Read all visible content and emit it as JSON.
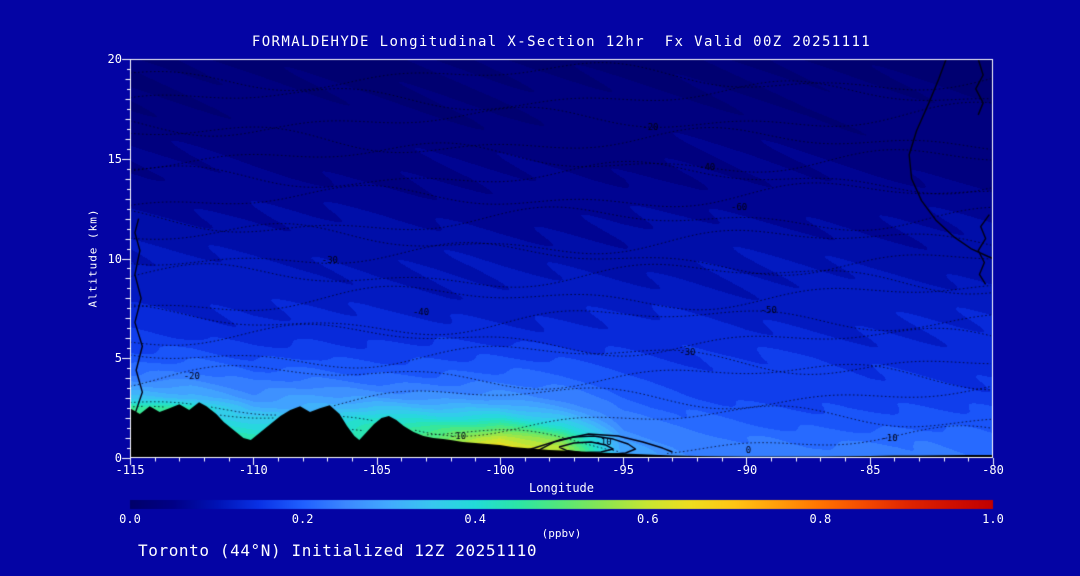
{
  "title": "FORMALDEHYDE Longitudinal X-Section 12hr  Fx Valid 00Z 20251111",
  "footer": "Toronto (44°N) Initialized 12Z 20251110",
  "colors": {
    "background": "#0404a4",
    "axis": "#ffffff",
    "text": "#ffffff",
    "terrain": "#000000",
    "contour_line": "#000014"
  },
  "axes": {
    "x": {
      "label": "Longitude",
      "min": -115,
      "max": -80,
      "ticks": [
        -115,
        -110,
        -105,
        -100,
        -95,
        -90,
        -85,
        -80
      ],
      "minor_step": 1
    },
    "y": {
      "label": "Altitude (km)",
      "min": 0,
      "max": 20,
      "ticks": [
        0,
        5,
        10,
        15,
        20
      ],
      "minor_step": 0.5
    }
  },
  "colorbar": {
    "label": "(ppbv)",
    "min": 0,
    "max": 1,
    "tick_labels": [
      "0.0",
      "0.2",
      "0.4",
      "0.6",
      "0.8",
      "1.0"
    ],
    "tick_values": [
      0,
      0.2,
      0.4,
      0.6,
      0.8,
      1.0
    ],
    "stops": [
      [
        0.0,
        "#00006a"
      ],
      [
        0.05,
        "#000086"
      ],
      [
        0.1,
        "#0012b4"
      ],
      [
        0.15,
        "#0a32e6"
      ],
      [
        0.2,
        "#2060ff"
      ],
      [
        0.25,
        "#3c88ff"
      ],
      [
        0.3,
        "#42aaff"
      ],
      [
        0.35,
        "#38c8f0"
      ],
      [
        0.4,
        "#22dcd8"
      ],
      [
        0.45,
        "#2ce6a6"
      ],
      [
        0.5,
        "#55e878"
      ],
      [
        0.55,
        "#8ce650"
      ],
      [
        0.6,
        "#c8e632"
      ],
      [
        0.65,
        "#f0de1e"
      ],
      [
        0.7,
        "#ffc614"
      ],
      [
        0.75,
        "#ff9e0a"
      ],
      [
        0.8,
        "#ff7300"
      ],
      [
        0.85,
        "#f54b00"
      ],
      [
        0.9,
        "#e02600"
      ],
      [
        0.95,
        "#d01000"
      ],
      [
        1.0,
        "#c00000"
      ]
    ]
  },
  "chart_data": {
    "type": "heatmap",
    "title": "FORMALDEHYDE Longitudinal X-Section 12hr  Fx Valid 00Z 20251111",
    "units": "ppbv",
    "x_name": "Longitude",
    "y_name": "Altitude (km)",
    "x_range": [
      -115,
      -80
    ],
    "y_range": [
      0,
      20
    ],
    "band_step": 0.025,
    "lons": [
      -115,
      -112.5,
      -110,
      -107.5,
      -105,
      -102.5,
      -100,
      -97.5,
      -95,
      -92.5,
      -90,
      -87.5,
      -85,
      -82.5,
      -80
    ],
    "alts": [
      0,
      0.5,
      1,
      1.5,
      2,
      2.5,
      3,
      4,
      5,
      6,
      8,
      10,
      12,
      14,
      17,
      20
    ],
    "values": [
      [
        0.5,
        0.5,
        0.5,
        0.48,
        0.52,
        0.58,
        0.66,
        0.6,
        0.3,
        0.26,
        0.24,
        0.23,
        0.24,
        0.24,
        0.22
      ],
      [
        0.48,
        0.48,
        0.47,
        0.45,
        0.5,
        0.56,
        0.65,
        0.58,
        0.29,
        0.25,
        0.23,
        0.22,
        0.24,
        0.23,
        0.21
      ],
      [
        0.45,
        0.45,
        0.44,
        0.42,
        0.46,
        0.5,
        0.6,
        0.52,
        0.27,
        0.23,
        0.22,
        0.21,
        0.22,
        0.22,
        0.2
      ],
      [
        0.42,
        0.42,
        0.4,
        0.38,
        0.44,
        0.46,
        0.5,
        0.42,
        0.25,
        0.22,
        0.2,
        0.2,
        0.2,
        0.2,
        0.19
      ],
      [
        0.5,
        0.4,
        0.36,
        0.35,
        0.4,
        0.38,
        0.4,
        0.34,
        0.23,
        0.2,
        0.19,
        0.19,
        0.19,
        0.18,
        0.18
      ],
      [
        0.48,
        0.44,
        0.3,
        0.3,
        0.33,
        0.32,
        0.33,
        0.28,
        0.21,
        0.19,
        0.18,
        0.18,
        0.17,
        0.17,
        0.17
      ],
      [
        0.34,
        0.32,
        0.26,
        0.28,
        0.27,
        0.27,
        0.27,
        0.24,
        0.2,
        0.18,
        0.17,
        0.17,
        0.16,
        0.16,
        0.16
      ],
      [
        0.24,
        0.24,
        0.21,
        0.22,
        0.21,
        0.21,
        0.21,
        0.2,
        0.18,
        0.17,
        0.16,
        0.16,
        0.15,
        0.15,
        0.15
      ],
      [
        0.18,
        0.19,
        0.17,
        0.18,
        0.17,
        0.17,
        0.17,
        0.17,
        0.16,
        0.15,
        0.15,
        0.15,
        0.14,
        0.14,
        0.14
      ],
      [
        0.15,
        0.15,
        0.14,
        0.15,
        0.14,
        0.14,
        0.14,
        0.14,
        0.14,
        0.14,
        0.13,
        0.13,
        0.13,
        0.13,
        0.13
      ],
      [
        0.12,
        0.12,
        0.115,
        0.115,
        0.11,
        0.11,
        0.11,
        0.11,
        0.11,
        0.11,
        0.11,
        0.11,
        0.11,
        0.11,
        0.11
      ],
      [
        0.1,
        0.1,
        0.1,
        0.1,
        0.095,
        0.095,
        0.09,
        0.09,
        0.09,
        0.095,
        0.095,
        0.095,
        0.09,
        0.09,
        0.09
      ],
      [
        0.08,
        0.08,
        0.08,
        0.075,
        0.075,
        0.07,
        0.07,
        0.07,
        0.07,
        0.075,
        0.075,
        0.075,
        0.07,
        0.07,
        0.07
      ],
      [
        0.055,
        0.055,
        0.05,
        0.05,
        0.05,
        0.05,
        0.05,
        0.05,
        0.05,
        0.055,
        0.055,
        0.05,
        0.05,
        0.05,
        0.05
      ],
      [
        0.035,
        0.035,
        0.035,
        0.03,
        0.03,
        0.03,
        0.03,
        0.035,
        0.035,
        0.035,
        0.035,
        0.035,
        0.03,
        0.03,
        0.03
      ],
      [
        0.02,
        0.02,
        0.02,
        0.02,
        0.02,
        0.02,
        0.02,
        0.02,
        0.02,
        0.02,
        0.02,
        0.02,
        0.02,
        0.02,
        0.02
      ]
    ],
    "terrain_profile": [
      [
        -115,
        2.5
      ],
      [
        -114.6,
        2.2
      ],
      [
        -114.2,
        2.6
      ],
      [
        -113.8,
        2.3
      ],
      [
        -113.4,
        2.5
      ],
      [
        -113,
        2.7
      ],
      [
        -112.6,
        2.4
      ],
      [
        -112.2,
        2.8
      ],
      [
        -111.9,
        2.6
      ],
      [
        -111.5,
        2.2
      ],
      [
        -111.2,
        1.8
      ],
      [
        -110.8,
        1.4
      ],
      [
        -110.4,
        1.0
      ],
      [
        -110.1,
        0.9
      ],
      [
        -109.7,
        1.3
      ],
      [
        -109.3,
        1.7
      ],
      [
        -108.9,
        2.1
      ],
      [
        -108.5,
        2.4
      ],
      [
        -108.1,
        2.6
      ],
      [
        -107.7,
        2.3
      ],
      [
        -107.3,
        2.5
      ],
      [
        -106.9,
        2.65
      ],
      [
        -106.5,
        2.2
      ],
      [
        -106.2,
        1.6
      ],
      [
        -105.9,
        1.1
      ],
      [
        -105.7,
        0.9
      ],
      [
        -105.4,
        1.3
      ],
      [
        -105.1,
        1.7
      ],
      [
        -104.8,
        2.0
      ],
      [
        -104.5,
        2.1
      ],
      [
        -104.2,
        1.9
      ],
      [
        -103.9,
        1.6
      ],
      [
        -103.5,
        1.3
      ],
      [
        -103.1,
        1.1
      ],
      [
        -102.7,
        1.0
      ],
      [
        -102.3,
        0.95
      ],
      [
        -102,
        0.9
      ],
      [
        -101.5,
        0.8
      ],
      [
        -101,
        0.75
      ],
      [
        -100.5,
        0.7
      ],
      [
        -100,
        0.65
      ],
      [
        -99.5,
        0.55
      ],
      [
        -99,
        0.5
      ],
      [
        -98.5,
        0.45
      ],
      [
        -98,
        0.4
      ],
      [
        -97.5,
        0.38
      ],
      [
        -97,
        0.35
      ],
      [
        -96.5,
        0.3
      ],
      [
        -96,
        0.28
      ],
      [
        -95.5,
        0.25
      ],
      [
        -95,
        0.22
      ],
      [
        -94.5,
        0.2
      ],
      [
        -94,
        0.18
      ],
      [
        -93.5,
        0.15
      ],
      [
        -93,
        0.12
      ],
      [
        -92,
        0.1
      ],
      [
        -91,
        0.09
      ],
      [
        -90,
        0.08
      ],
      [
        -89,
        0.07
      ],
      [
        -88,
        0.07
      ],
      [
        -87,
        0.08
      ],
      [
        -86,
        0.09
      ],
      [
        -85,
        0.1
      ],
      [
        -84,
        0.12
      ],
      [
        -83,
        0.13
      ],
      [
        -82,
        0.14
      ],
      [
        -81,
        0.15
      ],
      [
        -80,
        0.15
      ]
    ],
    "dotted_overlay": {
      "count": 19,
      "spacing_km": 1
    },
    "contour_labels": [
      {
        "text": "-20",
        "lon": -93.9,
        "alt": 16.6
      },
      {
        "text": "-40",
        "lon": -91.6,
        "alt": 14.6
      },
      {
        "text": "-60",
        "lon": -90.3,
        "alt": 12.6
      },
      {
        "text": "-30",
        "lon": -106.9,
        "alt": 9.9
      },
      {
        "text": "-20",
        "lon": -112.5,
        "alt": 4.1
      },
      {
        "text": "-40",
        "lon": -103.2,
        "alt": 7.3
      },
      {
        "text": "-30",
        "lon": -92.4,
        "alt": 5.3
      },
      {
        "text": "-50",
        "lon": -89.1,
        "alt": 7.4
      },
      {
        "text": "-10",
        "lon": -101.7,
        "alt": 1.1
      },
      {
        "text": "-10",
        "lon": -95.8,
        "alt": 0.8
      },
      {
        "text": "0",
        "lon": -89.7,
        "alt": 0.4
      },
      {
        "text": "-10",
        "lon": -84.2,
        "alt": 1.0
      }
    ],
    "solid_contours": [
      [
        [
          -114.8,
          0.3
        ],
        [
          -114.55,
          1.2
        ],
        [
          -114.8,
          2.2
        ],
        [
          -114.5,
          3.3
        ],
        [
          -114.75,
          4.4
        ],
        [
          -114.5,
          5.6
        ],
        [
          -114.8,
          6.8
        ],
        [
          -114.55,
          8.0
        ],
        [
          -114.8,
          9.2
        ],
        [
          -114.6,
          10.4
        ],
        [
          -114.8,
          11.3
        ],
        [
          -114.65,
          12.0
        ]
      ],
      [
        [
          -81.9,
          20
        ],
        [
          -82.2,
          19
        ],
        [
          -82.6,
          17.8
        ],
        [
          -83.1,
          16.4
        ],
        [
          -83.4,
          15.2
        ],
        [
          -83.3,
          14.0
        ],
        [
          -82.9,
          12.9
        ],
        [
          -82.3,
          11.9
        ],
        [
          -81.6,
          11.1
        ],
        [
          -80.9,
          10.5
        ],
        [
          -80.2,
          10.1
        ],
        [
          -80.0,
          10.0
        ]
      ],
      [
        [
          -80.6,
          20
        ],
        [
          -80.4,
          19.2
        ],
        [
          -80.7,
          18.5
        ],
        [
          -80.4,
          17.8
        ],
        [
          -80.6,
          17.2
        ]
      ],
      [
        [
          -80.15,
          12.2
        ],
        [
          -80.5,
          11.6
        ],
        [
          -80.3,
          11.0
        ],
        [
          -80.6,
          10.4
        ],
        [
          -80.35,
          9.8
        ],
        [
          -80.55,
          9.2
        ],
        [
          -80.3,
          8.7
        ]
      ],
      [
        [
          -98.5,
          0.35
        ],
        [
          -97.8,
          0.8
        ],
        [
          -97.0,
          1.05
        ],
        [
          -96.2,
          1.1
        ],
        [
          -95.4,
          0.95
        ],
        [
          -94.8,
          0.7
        ],
        [
          -94.5,
          0.45
        ],
        [
          -94.9,
          0.25
        ],
        [
          -95.8,
          0.15
        ],
        [
          -96.8,
          0.15
        ],
        [
          -97.8,
          0.2
        ],
        [
          -98.5,
          0.35
        ]
      ],
      [
        [
          -97.6,
          0.55
        ],
        [
          -97.0,
          0.75
        ],
        [
          -96.3,
          0.8
        ],
        [
          -95.7,
          0.65
        ],
        [
          -95.4,
          0.45
        ],
        [
          -95.9,
          0.3
        ],
        [
          -96.7,
          0.28
        ],
        [
          -97.3,
          0.38
        ],
        [
          -97.6,
          0.55
        ]
      ],
      [
        [
          -99.5,
          0.2
        ],
        [
          -98.6,
          0.5
        ],
        [
          -97.6,
          0.9
        ],
        [
          -96.4,
          1.2
        ],
        [
          -95.2,
          1.1
        ],
        [
          -94.2,
          0.8
        ],
        [
          -93.4,
          0.5
        ],
        [
          -93.0,
          0.3
        ]
      ]
    ]
  }
}
